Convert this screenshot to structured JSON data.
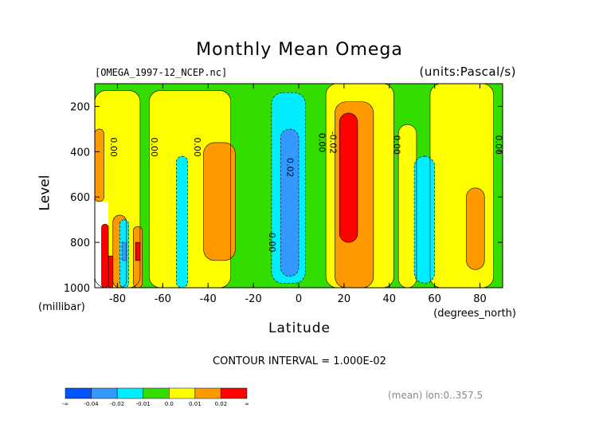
{
  "chart_data": {
    "type": "heatmap",
    "title": "Monthly Mean Omega",
    "file_label": "[OMEGA_1997-12_NCEP.nc]",
    "units_label": "(units:Pascal/s)",
    "xlabel": "Latitude",
    "x_units": "(degrees_north)",
    "ylabel": "Level",
    "y_units": "(millibar)",
    "xlim": [
      -90,
      90
    ],
    "ylim": [
      1000,
      100
    ],
    "x_ticks": [
      -80,
      -60,
      -40,
      -20,
      0,
      20,
      40,
      60,
      80
    ],
    "y_ticks": [
      200,
      400,
      600,
      800,
      1000
    ],
    "contour_interval_text": "CONTOUR INTERVAL = 1.000E-02",
    "mean_text": "(mean) lon:0..357.5",
    "contour_labels": [
      {
        "text": "0.00",
        "lat": -82,
        "level": 380
      },
      {
        "text": "0.00",
        "lat": -64,
        "level": 380
      },
      {
        "text": "0.00",
        "lat": -45,
        "level": 380
      },
      {
        "text": "0.00",
        "lat": -12,
        "level": 800
      },
      {
        "text": "0.02",
        "lat": -4,
        "level": 470
      },
      {
        "text": "0.00",
        "lat": 10,
        "level": 360
      },
      {
        "text": "-0.02",
        "lat": 15,
        "level": 360
      },
      {
        "text": "0.00",
        "lat": 43,
        "level": 370
      },
      {
        "text": "0.00",
        "lat": 88,
        "level": 370
      }
    ],
    "regions": [
      {
        "cls": "green",
        "lat": [
          -90,
          90
        ],
        "level": [
          100,
          1000
        ]
      },
      {
        "cls": "yellow",
        "lat": [
          -90,
          -70
        ],
        "level": [
          130,
          1000
        ]
      },
      {
        "cls": "yellow",
        "lat": [
          -66,
          -30
        ],
        "level": [
          130,
          1000
        ]
      },
      {
        "cls": "orange",
        "lat": [
          -90,
          -86
        ],
        "level": [
          300,
          620
        ]
      },
      {
        "cls": "orange",
        "lat": [
          -42,
          -28
        ],
        "level": [
          360,
          880
        ]
      },
      {
        "cls": "cyan",
        "lat": [
          -54,
          -49
        ],
        "level": [
          420,
          1000
        ]
      },
      {
        "cls": "cyan",
        "lat": [
          -12,
          3
        ],
        "level": [
          140,
          980
        ]
      },
      {
        "cls": "blue",
        "lat": [
          -8,
          0
        ],
        "level": [
          300,
          950
        ]
      },
      {
        "cls": "yellow",
        "lat": [
          12,
          42
        ],
        "level": [
          100,
          1000
        ]
      },
      {
        "cls": "orange",
        "lat": [
          16,
          33
        ],
        "level": [
          180,
          1000
        ]
      },
      {
        "cls": "red",
        "lat": [
          18,
          26
        ],
        "level": [
          230,
          800
        ]
      },
      {
        "cls": "yellow",
        "lat": [
          44,
          52
        ],
        "level": [
          280,
          1000
        ]
      },
      {
        "cls": "yellow",
        "lat": [
          58,
          86
        ],
        "level": [
          100,
          1000
        ]
      },
      {
        "cls": "cyan",
        "lat": [
          51,
          60
        ],
        "level": [
          420,
          980
        ]
      },
      {
        "cls": "orange",
        "lat": [
          74,
          82
        ],
        "level": [
          560,
          920
        ]
      },
      {
        "cls": "orange",
        "lat": [
          -82,
          -76
        ],
        "level": [
          680,
          1000
        ]
      },
      {
        "cls": "cyan",
        "lat": [
          -79,
          -75
        ],
        "level": [
          700,
          1000
        ]
      },
      {
        "cls": "blue",
        "lat": [
          -78,
          -76
        ],
        "level": [
          800,
          880
        ]
      },
      {
        "cls": "orange",
        "lat": [
          -73,
          -69
        ],
        "level": [
          730,
          1000
        ]
      },
      {
        "cls": "red",
        "lat": [
          -72,
          -70
        ],
        "level": [
          800,
          880
        ]
      },
      {
        "cls": "red",
        "lat": [
          -87,
          -84
        ],
        "level": [
          720,
          1000
        ]
      },
      {
        "cls": "red",
        "lat": [
          -84,
          -82
        ],
        "level": [
          860,
          1000
        ]
      },
      {
        "cls": "white",
        "lat": [
          -90,
          -87
        ],
        "level": [
          620,
          1000
        ]
      },
      {
        "cls": "white",
        "lat": [
          -87,
          -84
        ],
        "level": [
          620,
          720
        ]
      }
    ],
    "colorbar": {
      "colors": [
        "#0055ff",
        "#3399ff",
        "#00eeff",
        "#33dd00",
        "#ffff00",
        "#ff9900",
        "#ff0000"
      ],
      "tick_labels": [
        "-∞",
        "-0.04",
        "-0.02",
        "-0.01",
        "0.0",
        "0.01",
        "0.02",
        "∞"
      ]
    },
    "class_colors": {
      "blue": "#3399ff",
      "cyan": "#00eeff",
      "green": "#33dd00",
      "yellow": "#ffff00",
      "orange": "#ff9900",
      "red": "#ff0000",
      "white": "#ffffff"
    }
  }
}
